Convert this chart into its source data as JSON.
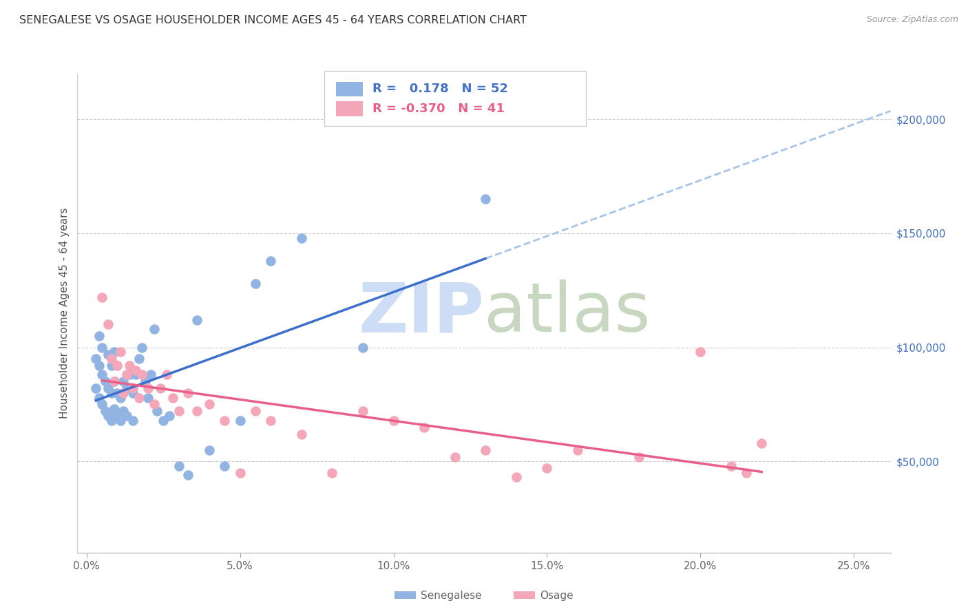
{
  "title": "SENEGALESE VS OSAGE HOUSEHOLDER INCOME AGES 45 - 64 YEARS CORRELATION CHART",
  "source": "Source: ZipAtlas.com",
  "ylabel": "Householder Income Ages 45 - 64 years",
  "xlabel_ticks": [
    "0.0%",
    "5.0%",
    "10.0%",
    "15.0%",
    "20.0%",
    "25.0%"
  ],
  "xlabel_vals": [
    0.0,
    0.05,
    0.1,
    0.15,
    0.2,
    0.25
  ],
  "ylabel_ticks": [
    "$50,000",
    "$100,000",
    "$150,000",
    "$200,000"
  ],
  "ylabel_vals": [
    50000,
    100000,
    150000,
    200000
  ],
  "ylim": [
    10000,
    220000
  ],
  "xlim": [
    -0.003,
    0.262
  ],
  "r_senegalese": 0.178,
  "n_senegalese": 52,
  "r_osage": -0.37,
  "n_osage": 41,
  "legend_label_1": "Senegalese",
  "legend_label_2": "Osage",
  "senegalese_color": "#92b4e3",
  "osage_color": "#f4a7b9",
  "senegalese_line_color": "#3c6fcd",
  "osage_line_color": "#e8608a",
  "dashed_line_color": "#a8c4e8",
  "senegalese_x": [
    0.003,
    0.003,
    0.004,
    0.004,
    0.004,
    0.005,
    0.005,
    0.005,
    0.006,
    0.006,
    0.007,
    0.007,
    0.007,
    0.008,
    0.008,
    0.008,
    0.009,
    0.009,
    0.009,
    0.01,
    0.01,
    0.01,
    0.011,
    0.011,
    0.012,
    0.012,
    0.013,
    0.013,
    0.014,
    0.015,
    0.015,
    0.016,
    0.017,
    0.018,
    0.019,
    0.02,
    0.021,
    0.022,
    0.023,
    0.025,
    0.027,
    0.03,
    0.033,
    0.036,
    0.04,
    0.045,
    0.05,
    0.055,
    0.06,
    0.07,
    0.09,
    0.13
  ],
  "senegalese_y": [
    82000,
    95000,
    78000,
    92000,
    105000,
    75000,
    88000,
    100000,
    72000,
    85000,
    70000,
    82000,
    97000,
    68000,
    80000,
    92000,
    73000,
    85000,
    98000,
    70000,
    80000,
    92000,
    68000,
    78000,
    72000,
    85000,
    70000,
    82000,
    88000,
    68000,
    80000,
    88000,
    95000,
    100000,
    85000,
    78000,
    88000,
    108000,
    72000,
    68000,
    70000,
    48000,
    44000,
    112000,
    55000,
    48000,
    68000,
    128000,
    138000,
    148000,
    100000,
    165000
  ],
  "osage_x": [
    0.005,
    0.007,
    0.008,
    0.009,
    0.01,
    0.011,
    0.012,
    0.013,
    0.014,
    0.015,
    0.016,
    0.017,
    0.018,
    0.02,
    0.022,
    0.024,
    0.026,
    0.028,
    0.03,
    0.033,
    0.036,
    0.04,
    0.045,
    0.05,
    0.055,
    0.06,
    0.07,
    0.08,
    0.09,
    0.1,
    0.11,
    0.12,
    0.13,
    0.14,
    0.15,
    0.16,
    0.18,
    0.2,
    0.21,
    0.215,
    0.22
  ],
  "osage_y": [
    122000,
    110000,
    95000,
    85000,
    92000,
    98000,
    80000,
    88000,
    92000,
    82000,
    90000,
    78000,
    88000,
    82000,
    75000,
    82000,
    88000,
    78000,
    72000,
    80000,
    72000,
    75000,
    68000,
    45000,
    72000,
    68000,
    62000,
    45000,
    72000,
    68000,
    65000,
    52000,
    55000,
    43000,
    47000,
    55000,
    52000,
    98000,
    48000,
    45000,
    58000
  ]
}
